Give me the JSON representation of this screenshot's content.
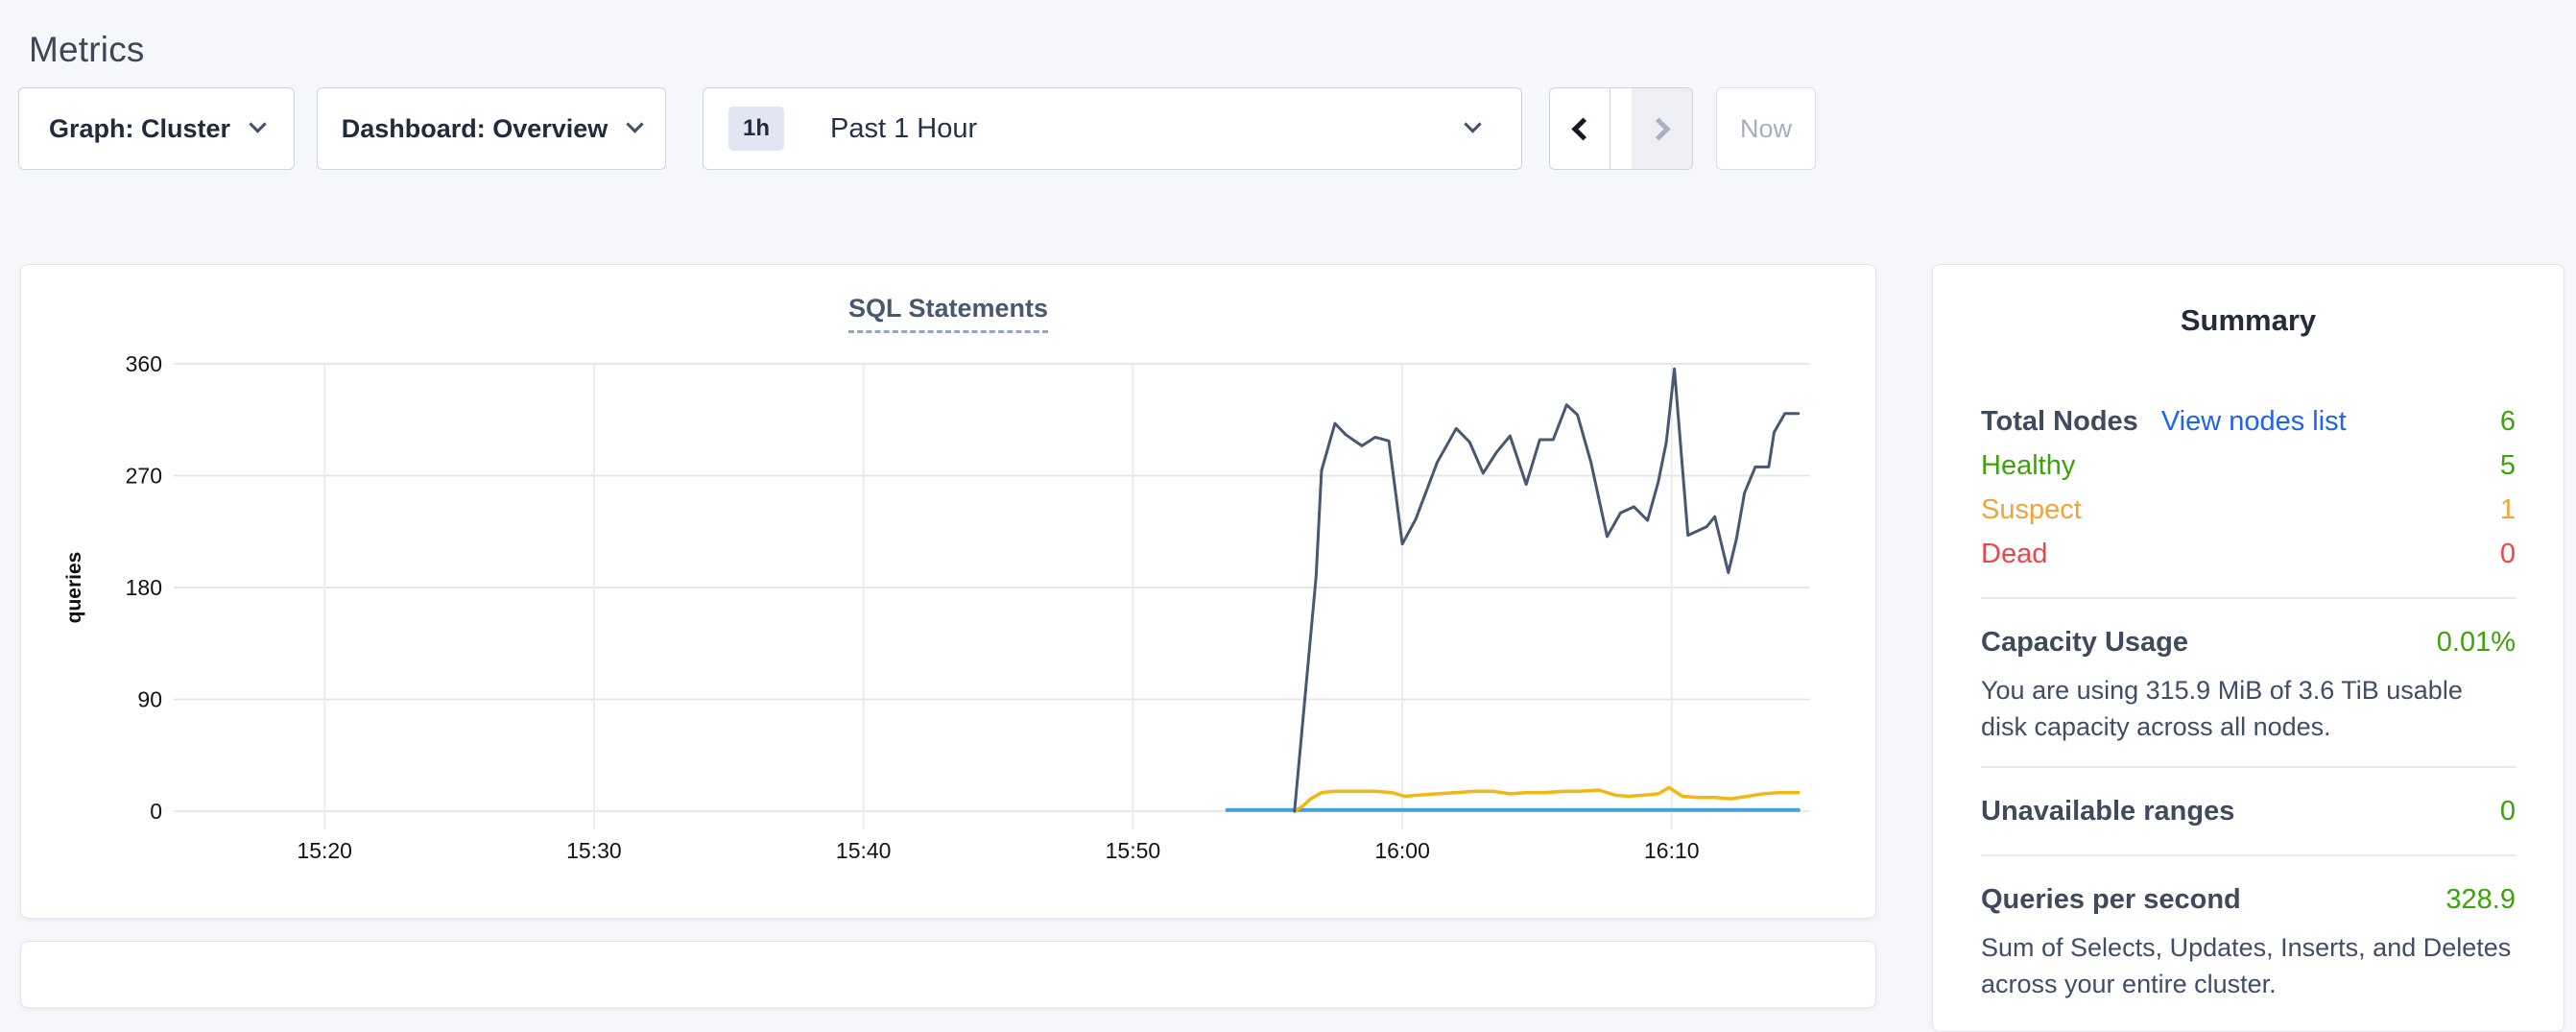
{
  "page": {
    "title": "Metrics"
  },
  "toolbar": {
    "graph_dropdown": "Graph: Cluster",
    "dashboard_dropdown": "Dashboard: Overview",
    "time_selector": {
      "badge": "1h",
      "label": "Past 1 Hour"
    },
    "now_button": "Now"
  },
  "chart_data": {
    "type": "line",
    "title": "SQL Statements",
    "ylabel": "queries",
    "yticks": [
      0,
      90,
      180,
      270,
      360
    ],
    "ylim": [
      0,
      360
    ],
    "grid": true,
    "legend": "none",
    "xlim_minutes": [
      14.4,
      75.1
    ],
    "x_unit": "time (HH:MM), minutes after 15:00",
    "xticks": [
      {
        "m": 20,
        "label": "15:20"
      },
      {
        "m": 30,
        "label": "15:30"
      },
      {
        "m": 40,
        "label": "15:40"
      },
      {
        "m": 50,
        "label": "15:50"
      },
      {
        "m": 60,
        "label": "16:00"
      },
      {
        "m": 70,
        "label": "16:10"
      }
    ],
    "series": [
      {
        "name": "blue-flat-series",
        "color": "#479fd4",
        "width": 4,
        "points": [
          [
            53.5,
            1
          ],
          [
            74.7,
            1
          ]
        ]
      },
      {
        "name": "yellow-series",
        "color": "#f2b713",
        "width": 3.5,
        "points": [
          [
            56.0,
            0
          ],
          [
            56.3,
            4
          ],
          [
            56.6,
            10
          ],
          [
            57.0,
            15
          ],
          [
            57.5,
            16
          ],
          [
            58.2,
            16
          ],
          [
            59.0,
            16
          ],
          [
            59.6,
            15
          ],
          [
            60.1,
            12
          ],
          [
            60.6,
            13
          ],
          [
            61.3,
            14
          ],
          [
            62.0,
            15
          ],
          [
            62.7,
            16
          ],
          [
            63.4,
            16
          ],
          [
            64.0,
            14
          ],
          [
            64.6,
            15
          ],
          [
            65.3,
            15
          ],
          [
            66.0,
            16
          ],
          [
            66.6,
            16
          ],
          [
            67.3,
            17
          ],
          [
            67.9,
            13
          ],
          [
            68.4,
            12
          ],
          [
            69.0,
            13
          ],
          [
            69.5,
            14
          ],
          [
            69.9,
            19
          ],
          [
            70.4,
            12
          ],
          [
            71.0,
            11
          ],
          [
            71.6,
            11
          ],
          [
            72.2,
            10
          ],
          [
            72.8,
            12
          ],
          [
            73.4,
            14
          ],
          [
            74.0,
            15
          ],
          [
            74.7,
            15
          ]
        ]
      },
      {
        "name": "navy-series",
        "color": "#475872",
        "width": 3,
        "points": [
          [
            56.0,
            0
          ],
          [
            56.8,
            189
          ],
          [
            57.0,
            274
          ],
          [
            57.5,
            312
          ],
          [
            57.9,
            303
          ],
          [
            58.5,
            294
          ],
          [
            59.0,
            301
          ],
          [
            59.5,
            298
          ],
          [
            60.0,
            215
          ],
          [
            60.5,
            235
          ],
          [
            61.3,
            281
          ],
          [
            62.0,
            308
          ],
          [
            62.5,
            297
          ],
          [
            63.0,
            272
          ],
          [
            63.5,
            289
          ],
          [
            64.0,
            302
          ],
          [
            64.6,
            263
          ],
          [
            65.1,
            299
          ],
          [
            65.6,
            299
          ],
          [
            66.1,
            327
          ],
          [
            66.5,
            319
          ],
          [
            67.0,
            281
          ],
          [
            67.6,
            221
          ],
          [
            68.1,
            240
          ],
          [
            68.6,
            245
          ],
          [
            69.1,
            234
          ],
          [
            69.5,
            265
          ],
          [
            69.8,
            297
          ],
          [
            70.1,
            356
          ],
          [
            70.6,
            222
          ],
          [
            71.0,
            226
          ],
          [
            71.3,
            229
          ],
          [
            71.6,
            237
          ],
          [
            72.1,
            192
          ],
          [
            72.4,
            219
          ],
          [
            72.7,
            256
          ],
          [
            73.1,
            277
          ],
          [
            73.6,
            277
          ],
          [
            73.8,
            305
          ],
          [
            74.2,
            320
          ],
          [
            74.7,
            320
          ]
        ]
      }
    ]
  },
  "summary": {
    "title": "Summary",
    "total_nodes_label": "Total Nodes",
    "view_nodes_link": "View nodes list",
    "total_nodes_value": "6",
    "statuses": [
      {
        "label": "Healthy",
        "value": "5",
        "color": "#3da30b"
      },
      {
        "label": "Suspect",
        "value": "1",
        "color": "#f1a43c"
      },
      {
        "label": "Dead",
        "value": "0",
        "color": "#f0444b"
      }
    ],
    "capacity_label": "Capacity Usage",
    "capacity_value": "0.01%",
    "capacity_desc": "You are using 315.9 MiB of 3.6 TiB usable disk capacity across all nodes.",
    "unavailable_label": "Unavailable ranges",
    "unavailable_value": "0",
    "qps_label": "Queries per second",
    "qps_value": "328.9",
    "qps_desc": "Sum of Selects, Updates, Inserts, and Deletes across your entire cluster."
  },
  "colors": {
    "green": "#3da30b",
    "orange": "#f1a43c",
    "red": "#f0444b",
    "link": "#2062f0"
  }
}
